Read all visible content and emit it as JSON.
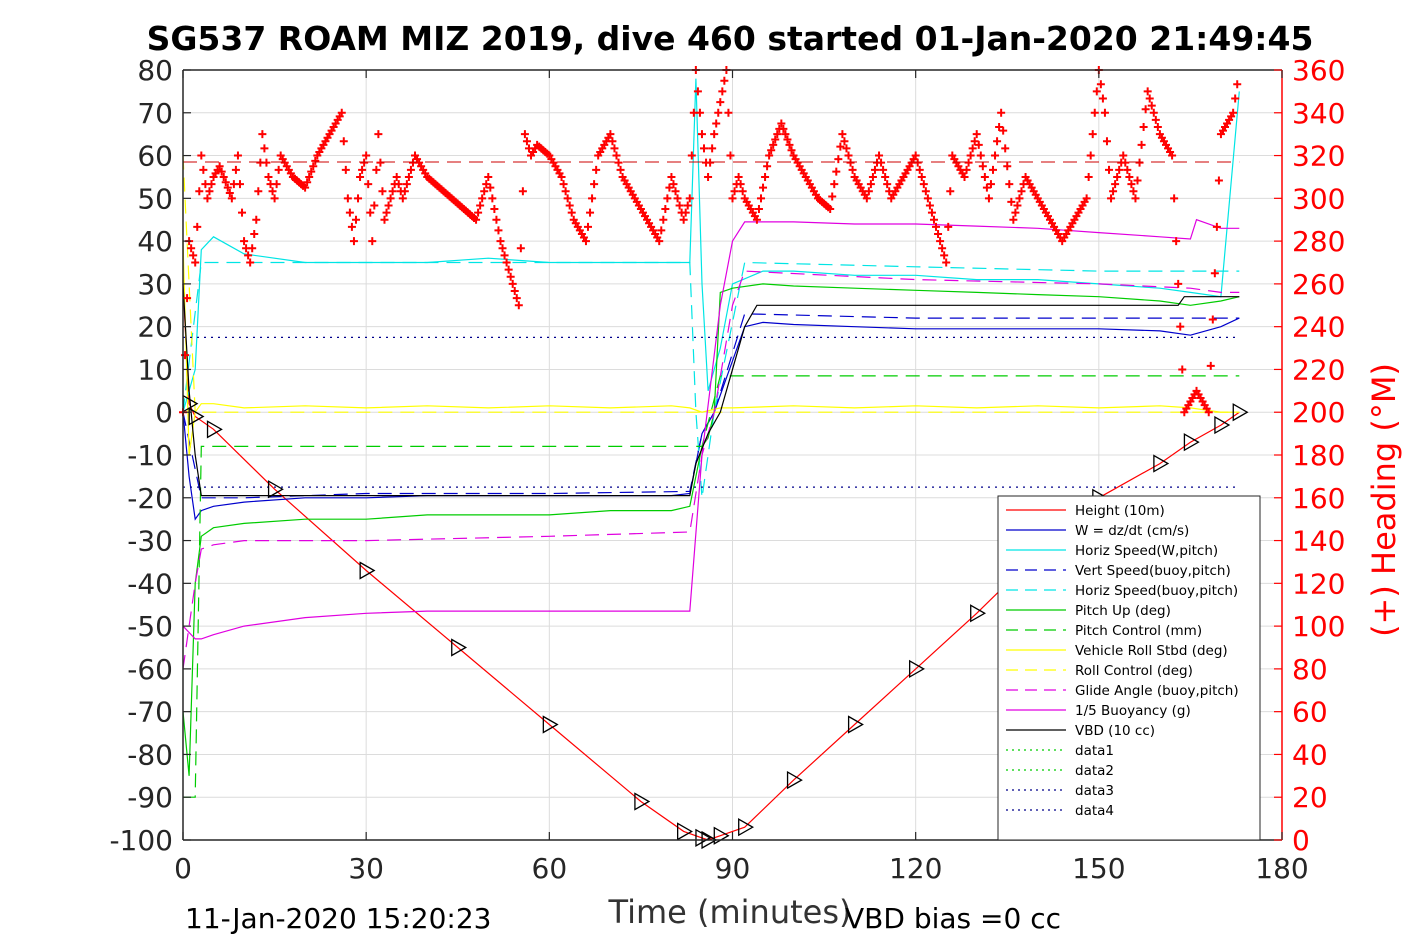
{
  "chart_data": {
    "type": "line",
    "title": "SG537 ROAM MIZ 2019, dive 460 started 01-Jan-2020 21:49:45",
    "xlabel": "Time (minutes)",
    "ylabel": "",
    "y2label": "(+) Heading (°M)",
    "xlim": [
      0,
      180
    ],
    "ylim": [
      -100,
      80
    ],
    "y2lim": [
      0,
      360
    ],
    "x_ticks": [
      0,
      30,
      60,
      90,
      120,
      150,
      180
    ],
    "y_ticks": [
      -100,
      -90,
      -80,
      -70,
      -60,
      -50,
      -40,
      -30,
      -20,
      -10,
      0,
      10,
      20,
      30,
      40,
      50,
      60,
      70,
      80
    ],
    "y2_ticks": [
      0,
      20,
      40,
      60,
      80,
      100,
      120,
      140,
      160,
      180,
      200,
      220,
      240,
      260,
      280,
      300,
      320,
      340,
      360
    ],
    "grid": true,
    "legend_position": "lower-right",
    "footer_left": "11-Jan-2020 15:20:23",
    "footer_right": "VBD bias =0 cc",
    "colors": {
      "axis_right": "#ff0000",
      "height": "#ff0000",
      "w": "#0000cc",
      "horiz_speed": "#00e5e5",
      "pitch": "#00cc00",
      "roll": "#ffff00",
      "glide": "#e000e0",
      "buoyancy": "#e000e0",
      "vbd": "#000000",
      "heading": "#ff0000"
    },
    "series": [
      {
        "name": "Height (10m)",
        "color": "#ff0000",
        "style": "solid",
        "x": [
          0,
          1,
          2,
          5,
          15,
          30,
          45,
          60,
          75,
          82,
          85,
          86,
          88,
          92,
          100,
          110,
          120,
          130,
          140,
          150,
          160,
          165,
          170,
          173
        ],
        "y": [
          30,
          2,
          -1,
          -4,
          -18,
          -37,
          -55,
          -73,
          -91,
          -98,
          -99.5,
          -100,
          -99,
          -97,
          -86,
          -73,
          -60,
          -47,
          -33,
          -20,
          -12,
          -7,
          -3,
          0
        ]
      },
      {
        "name": "W = dz/dt (cm/s)",
        "color": "#0000cc",
        "style": "solid",
        "x": [
          0,
          1,
          2,
          3,
          5,
          10,
          20,
          30,
          40,
          50,
          60,
          70,
          80,
          83,
          85,
          87,
          90,
          92,
          95,
          100,
          110,
          120,
          130,
          140,
          150,
          160,
          165,
          170,
          173
        ],
        "y": [
          0,
          -15,
          -25,
          -23,
          -22,
          -21,
          -20,
          -20,
          -19.5,
          -19.5,
          -19.5,
          -19.5,
          -19.5,
          -19,
          -5,
          0,
          12,
          20,
          21,
          20.5,
          20,
          19.5,
          19.5,
          19.5,
          19.5,
          19,
          18,
          20,
          22
        ]
      },
      {
        "name": "Horiz Speed(W,pitch)",
        "color": "#00e5e5",
        "style": "solid",
        "x": [
          0,
          2,
          3,
          5,
          10,
          20,
          30,
          40,
          50,
          60,
          70,
          80,
          83,
          84,
          85,
          86,
          88,
          90,
          95,
          100,
          110,
          120,
          130,
          140,
          150,
          160,
          165,
          170,
          173
        ],
        "y": [
          0,
          10,
          38,
          41,
          37,
          35,
          35,
          35,
          36,
          35,
          35,
          35,
          35,
          78,
          30,
          5,
          15,
          30,
          33,
          33,
          32,
          32,
          31,
          31,
          30,
          29,
          28,
          27,
          75
        ]
      },
      {
        "name": "Vert Speed(buoy,pitch)",
        "color": "#0000cc",
        "style": "dashed",
        "x": [
          0,
          3,
          10,
          30,
          60,
          83,
          85,
          87,
          92,
          120,
          150,
          170,
          173
        ],
        "y": [
          0,
          -20,
          -20,
          -19,
          -19,
          -18.5,
          -5,
          0,
          23,
          22,
          22,
          22,
          22
        ]
      },
      {
        "name": "Horiz Speed(buoy,pitch)",
        "color": "#00e5e5",
        "style": "dashed",
        "x": [
          0,
          3,
          10,
          30,
          60,
          83,
          84,
          85,
          87,
          92,
          120,
          150,
          170,
          173
        ],
        "y": [
          0,
          35,
          35,
          35,
          35,
          35,
          0,
          -20,
          0,
          35,
          34,
          33,
          33,
          33
        ]
      },
      {
        "name": "Pitch Up (deg)",
        "color": "#00cc00",
        "style": "solid",
        "x": [
          0,
          1,
          2,
          3,
          5,
          10,
          20,
          30,
          40,
          50,
          60,
          70,
          80,
          83,
          85,
          86,
          87,
          88,
          90,
          95,
          100,
          110,
          120,
          130,
          140,
          150,
          160,
          165,
          170,
          173
        ],
        "y": [
          -70,
          -85,
          -40,
          -29,
          -27,
          -26,
          -25,
          -25,
          -24,
          -24,
          -24,
          -23,
          -23,
          -22,
          -8,
          -6,
          0,
          28,
          29,
          30,
          29.5,
          29,
          28.5,
          28,
          27.5,
          27,
          26,
          25,
          26,
          27
        ]
      },
      {
        "name": "Pitch Control (mm)",
        "color": "#00cc00",
        "style": "dashed",
        "x": [
          0,
          2,
          3,
          83,
          85,
          88,
          173
        ],
        "y": [
          -90,
          -90,
          -8,
          -8,
          -8,
          8.5,
          8.5
        ]
      },
      {
        "name": "Vehicle Roll Stbd (deg)",
        "color": "#ffff00",
        "style": "solid",
        "x": [
          0,
          1,
          2,
          3,
          5,
          10,
          20,
          30,
          40,
          50,
          60,
          70,
          80,
          83,
          85,
          88,
          90,
          100,
          110,
          120,
          130,
          140,
          150,
          160,
          165,
          170,
          173
        ],
        "y": [
          40,
          -10,
          0,
          2,
          2,
          1,
          1.5,
          1,
          1.5,
          1,
          1.5,
          1,
          1.5,
          1,
          0,
          1,
          1,
          1.5,
          1,
          1.5,
          1,
          1.5,
          1,
          1.5,
          1,
          0,
          0
        ]
      },
      {
        "name": "Roll Control (deg)",
        "color": "#ffff00",
        "style": "dashed",
        "x": [
          0,
          2,
          3,
          83,
          85,
          88,
          173
        ],
        "y": [
          60,
          0,
          0,
          0,
          0,
          0,
          0
        ]
      },
      {
        "name": "Glide Angle (buoy,pitch)",
        "color": "#e000e0",
        "style": "dashed",
        "x": [
          0,
          2,
          3,
          5,
          10,
          30,
          60,
          83,
          85,
          87,
          90,
          92,
          120,
          150,
          165,
          170,
          173
        ],
        "y": [
          -60,
          -40,
          -32,
          -31,
          -30,
          -30,
          -29,
          -28,
          -10,
          0,
          25,
          33,
          31,
          30,
          29,
          28,
          28
        ]
      },
      {
        "name": "1/5 Buoyancy (g)",
        "color": "#e000e0",
        "style": "solid",
        "x": [
          0,
          2,
          3,
          5,
          10,
          20,
          30,
          40,
          50,
          60,
          70,
          80,
          83,
          85,
          88,
          90,
          92,
          100,
          110,
          120,
          130,
          140,
          150,
          160,
          165,
          166,
          170,
          173
        ],
        "y": [
          -50,
          -53,
          -53,
          -52,
          -50,
          -48,
          -47,
          -46.5,
          -46.5,
          -46.5,
          -46.5,
          -46.5,
          -46.5,
          -10,
          25,
          40,
          44.5,
          44.5,
          44,
          44,
          43.5,
          43,
          42,
          41,
          40.5,
          45,
          43,
          43
        ]
      },
      {
        "name": "VBD (10 cc)",
        "color": "#000000",
        "style": "solid",
        "x": [
          0,
          1,
          2,
          3,
          83,
          84,
          86,
          88,
          90,
          92,
          94,
          120,
          150,
          163,
          164,
          173
        ],
        "y": [
          30,
          5,
          -10,
          -19.5,
          -19.5,
          -12,
          -5,
          0,
          10,
          20,
          25,
          25,
          25,
          25,
          27,
          27
        ]
      },
      {
        "name": "data1",
        "color": "#00cc00",
        "style": "dotted",
        "x": [],
        "y": []
      },
      {
        "name": "data2",
        "color": "#00cc00",
        "style": "dotted",
        "x": [],
        "y": []
      },
      {
        "name": "data3",
        "color": "#00008b",
        "style": "dotted",
        "x": [
          0,
          173
        ],
        "y": [
          17.5,
          17.5
        ]
      },
      {
        "name": "data4",
        "color": "#00008b",
        "style": "dotted",
        "x": [
          0,
          173
        ],
        "y": [
          -17.5,
          -17.5
        ]
      }
    ],
    "heading_series": {
      "name": "(+) Heading (°M)",
      "color": "#ff0000",
      "marker": "+",
      "x": [
        0,
        1,
        2,
        3,
        4,
        5,
        6,
        8,
        9,
        10,
        11,
        12,
        13,
        14,
        15,
        16,
        18,
        20,
        22,
        24,
        26,
        27,
        28,
        29,
        30,
        31,
        32,
        33,
        34,
        35,
        36,
        38,
        40,
        42,
        44,
        46,
        48,
        50,
        52,
        54,
        55,
        56,
        57,
        58,
        60,
        62,
        64,
        66,
        68,
        70,
        72,
        74,
        76,
        78,
        80,
        82,
        83,
        84,
        85,
        86,
        87,
        88,
        89,
        90,
        91,
        92,
        94,
        96,
        98,
        100,
        102,
        104,
        106,
        108,
        110,
        112,
        114,
        116,
        118,
        120,
        122,
        124,
        125,
        126,
        128,
        130,
        132,
        134,
        136,
        138,
        140,
        142,
        144,
        146,
        148,
        150,
        151,
        152,
        154,
        156,
        158,
        160,
        162,
        164,
        166,
        168,
        170,
        172,
        173
      ],
      "y": [
        200,
        280,
        270,
        320,
        300,
        310,
        315,
        300,
        320,
        280,
        270,
        290,
        330,
        310,
        300,
        320,
        310,
        305,
        320,
        330,
        340,
        300,
        280,
        310,
        320,
        280,
        330,
        290,
        300,
        310,
        300,
        320,
        310,
        305,
        300,
        295,
        290,
        310,
        280,
        260,
        250,
        330,
        320,
        325,
        320,
        310,
        290,
        280,
        320,
        330,
        310,
        300,
        290,
        280,
        310,
        290,
        300,
        360,
        330,
        310,
        330,
        345,
        360,
        300,
        310,
        300,
        290,
        320,
        335,
        320,
        310,
        300,
        295,
        330,
        310,
        300,
        320,
        300,
        310,
        320,
        300,
        280,
        270,
        320,
        310,
        330,
        300,
        340,
        290,
        310,
        300,
        290,
        280,
        290,
        300,
        360,
        340,
        300,
        320,
        300,
        350,
        330,
        320,
        200,
        210,
        200,
        330,
        340,
        360
      ]
    }
  }
}
